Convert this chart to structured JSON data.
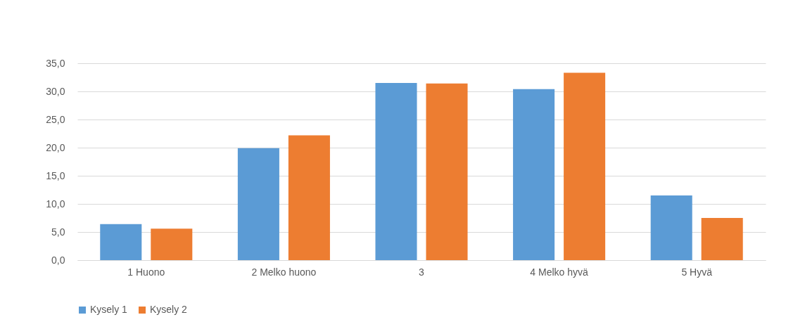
{
  "chart_data": {
    "type": "bar",
    "categories": [
      "1 Huono",
      "2 Melko huono",
      "3",
      "4 Melko hyvä",
      "5 Hyvä"
    ],
    "series": [
      {
        "name": "Kysely 1",
        "color": "#5b9bd5",
        "values": [
          6.4,
          19.9,
          31.5,
          30.4,
          11.5
        ]
      },
      {
        "name": "Kysely 2",
        "color": "#ed7d31",
        "values": [
          5.6,
          22.2,
          31.4,
          33.3,
          7.5
        ]
      }
    ],
    "ylim": [
      0,
      35
    ],
    "yticks": [
      {
        "value": 0,
        "label": "0,0"
      },
      {
        "value": 5,
        "label": "5,0"
      },
      {
        "value": 10,
        "label": "10,0"
      },
      {
        "value": 15,
        "label": "15,0"
      },
      {
        "value": 20,
        "label": "20,0"
      },
      {
        "value": 25,
        "label": "25,0"
      },
      {
        "value": 30,
        "label": "30,0"
      },
      {
        "value": 35,
        "label": "35,0"
      }
    ],
    "grid": "y",
    "legend": "bottom"
  }
}
